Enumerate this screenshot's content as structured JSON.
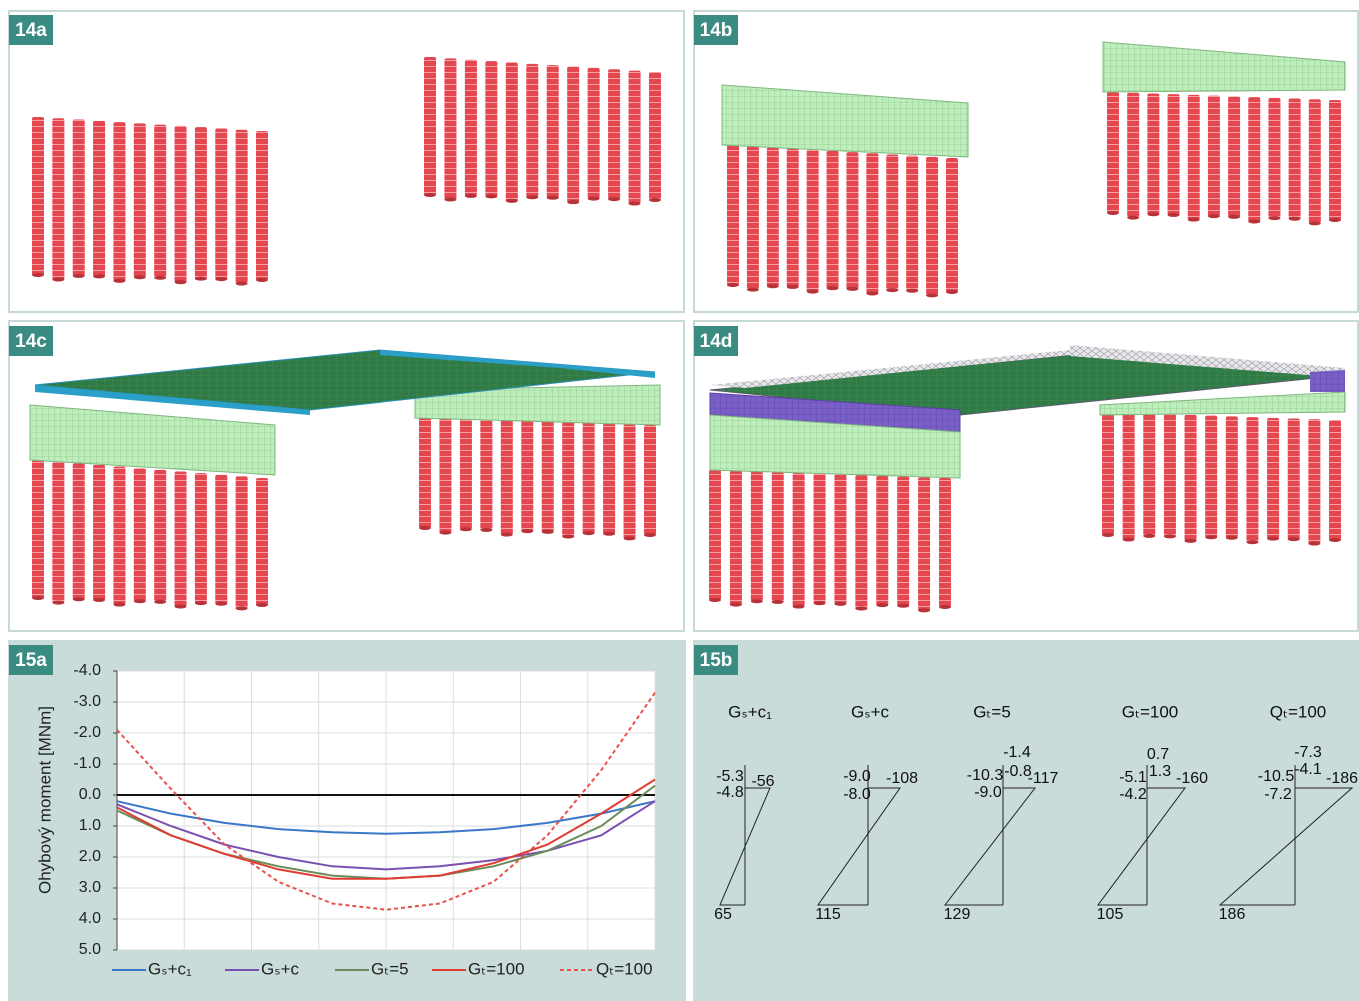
{
  "figure_labels": [
    "14a",
    "14b",
    "14c",
    "14d"
  ],
  "chart_label": "15a",
  "chart_data": {
    "type": "line",
    "y_label": "Ohybový moment [MNm]",
    "categories": [
      null,
      null,
      null,
      null,
      null,
      null,
      null,
      null,
      null,
      null,
      null
    ],
    "series": [
      {
        "name": "Gₛ+c₁",
        "color": "#3a78c8",
        "dashed": false,
        "values": [
          0.2,
          0.6,
          0.9,
          1.1,
          1.2,
          1.25,
          1.2,
          1.1,
          0.9,
          0.6,
          0.2
        ]
      },
      {
        "name": "Gₛ+c",
        "color": "#7a50b0",
        "dashed": false,
        "values": [
          0.3,
          1.0,
          1.6,
          2.0,
          2.3,
          2.4,
          2.3,
          2.1,
          1.8,
          1.3,
          0.2
        ]
      },
      {
        "name": "Gₜ=5",
        "color": "#6a8c5a",
        "dashed": false,
        "values": [
          0.5,
          1.3,
          1.9,
          2.3,
          2.6,
          2.7,
          2.6,
          2.3,
          1.8,
          1.0,
          -0.3
        ]
      },
      {
        "name": "Gₜ=100",
        "color": "#e03c32",
        "dashed": false,
        "values": [
          0.4,
          1.3,
          1.9,
          2.4,
          2.7,
          2.7,
          2.6,
          2.2,
          1.6,
          0.6,
          -0.5
        ]
      },
      {
        "name": "Qₜ=100",
        "color": "#e8524a",
        "dashed": true,
        "values": [
          -2.1,
          -0.2,
          1.6,
          2.8,
          3.5,
          3.7,
          3.5,
          2.8,
          1.3,
          -0.8,
          -3.3
        ]
      }
    ],
    "ylim": [
      -4.0,
      5.0
    ],
    "y_inverted": true,
    "yticks": [
      {
        "value": -4,
        "label": "-4.0"
      },
      {
        "value": -3,
        "label": "-3.0"
      },
      {
        "value": -2,
        "label": "-2.0"
      },
      {
        "value": -1,
        "label": "-1.0"
      },
      {
        "value": 0,
        "label": "0.0"
      },
      {
        "value": 1,
        "label": "1.0"
      },
      {
        "value": 2,
        "label": "2.0"
      },
      {
        "value": 3,
        "label": "3.0"
      },
      {
        "value": 4,
        "label": "4.0"
      },
      {
        "value": 5,
        "label": "5.0"
      }
    ],
    "grid": true,
    "legend": "bottom"
  },
  "diagram_label": "15b",
  "diagrams": [
    {
      "title": "Gₛ+c₁",
      "labels": [
        "-5.3",
        "-4.8",
        "-56",
        "65"
      ]
    },
    {
      "title": "Gₛ+c",
      "labels": [
        "-9.0",
        "-8.0",
        "-108",
        "115"
      ]
    },
    {
      "title": "Gₜ=5",
      "labels": [
        "-1.4",
        "-10.3",
        "-0.8",
        "-117",
        "-9.0",
        "129"
      ]
    },
    {
      "title": "Gₜ=100",
      "labels": [
        "0.7",
        "-5.1",
        "1.3",
        "-160",
        "-4.2",
        "105"
      ]
    },
    {
      "title": "Qₜ=100",
      "labels": [
        "-7.3",
        "-10.5",
        "-4.1",
        "-186",
        "-7.2",
        "186"
      ]
    }
  ]
}
